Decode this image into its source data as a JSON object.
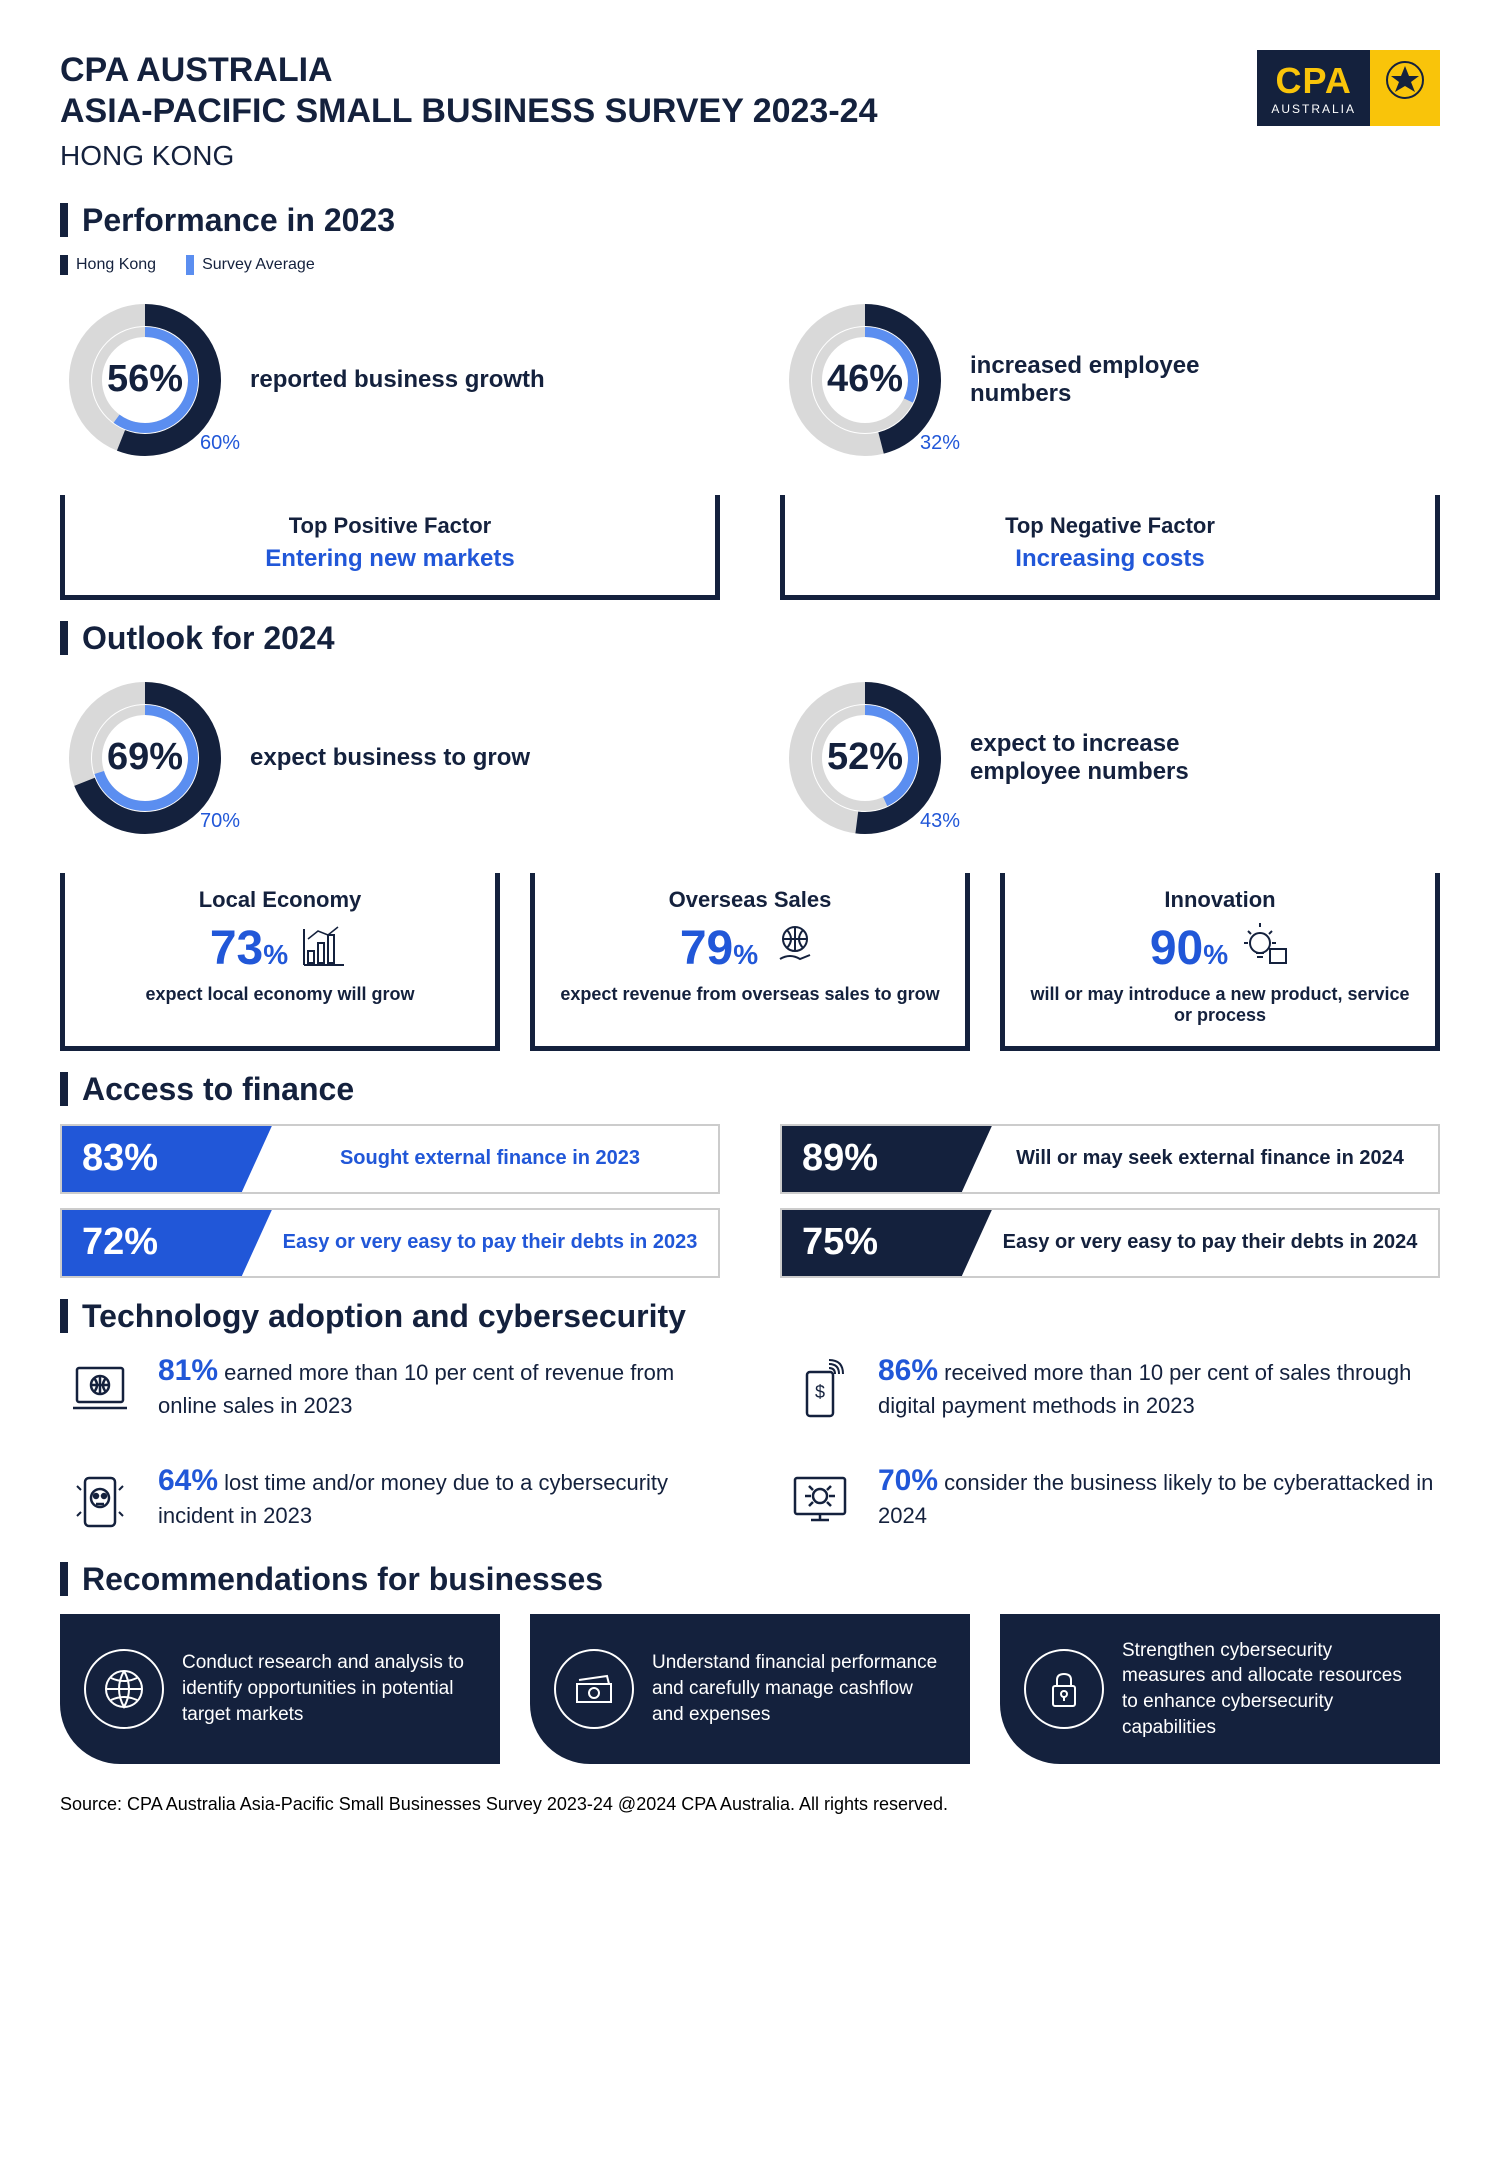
{
  "colors": {
    "navy": "#14213d",
    "blue": "#2157d8",
    "lightblue": "#5b8ef0",
    "yellow": "#f9c40a",
    "grey": "#d9d9d9",
    "white": "#ffffff"
  },
  "header": {
    "org": "CPA AUSTRALIA",
    "title": "ASIA-PACIFIC SMALL BUSINESS SURVEY 2023-24",
    "region": "HONG KONG",
    "logo_text": "CPA",
    "logo_sub": "AUSTRALIA"
  },
  "performance": {
    "title": "Performance in 2023",
    "legend": [
      {
        "label": "Hong Kong",
        "color": "#14213d"
      },
      {
        "label": "Survey Average",
        "color": "#5b8ef0"
      }
    ],
    "donuts": [
      {
        "value": 56,
        "avg": 60,
        "label": "reported business growth"
      },
      {
        "value": 46,
        "avg": 32,
        "label": "increased employee numbers"
      }
    ],
    "factors": [
      {
        "title": "Top Positive Factor",
        "value": "Entering new markets"
      },
      {
        "title": "Top Negative Factor",
        "value": "Increasing costs"
      }
    ]
  },
  "outlook": {
    "title": "Outlook for 2024",
    "donuts": [
      {
        "value": 69,
        "avg": 70,
        "label": "expect business to grow"
      },
      {
        "value": 52,
        "avg": 43,
        "label": "expect to increase employee numbers"
      }
    ],
    "cards": [
      {
        "title": "Local Economy",
        "value": "73",
        "desc": "expect local economy will grow",
        "icon": "chart"
      },
      {
        "title": "Overseas Sales",
        "value": "79",
        "desc": "expect revenue from overseas sales to grow",
        "icon": "globe-hand"
      },
      {
        "title": "Innovation",
        "value": "90",
        "desc": "will or may introduce a new product, service or process",
        "icon": "bulb"
      }
    ]
  },
  "finance": {
    "title": "Access to finance",
    "left": [
      {
        "pct": "83%",
        "text": "Sought external finance in 2023",
        "bg": "#2157d8",
        "txtcolor": "#2157d8"
      },
      {
        "pct": "72%",
        "text": "Easy or very easy to pay their debts in 2023",
        "bg": "#2157d8",
        "txtcolor": "#2157d8"
      }
    ],
    "right": [
      {
        "pct": "89%",
        "text": "Will or may seek external finance in 2024",
        "bg": "#14213d",
        "txtcolor": "#14213d"
      },
      {
        "pct": "75%",
        "text": "Easy or very easy to pay their debts in 2024",
        "bg": "#14213d",
        "txtcolor": "#14213d"
      }
    ]
  },
  "tech": {
    "title": "Technology adoption and cybersecurity",
    "items": [
      {
        "pct": "81%",
        "text": " earned more than 10 per cent of revenue from online sales in 2023",
        "icon": "laptop"
      },
      {
        "pct": "86%",
        "text": " received more than 10 per cent of sales through digital payment methods in 2023",
        "icon": "phone-pay"
      },
      {
        "pct": "64%",
        "text": " lost time and/or money due to a cybersecurity incident in 2023",
        "icon": "phone-skull"
      },
      {
        "pct": "70%",
        "text": " consider the business likely to be cyberattacked in 2024",
        "icon": "screen-bug"
      }
    ]
  },
  "recs": {
    "title": "Recommendations for businesses",
    "items": [
      {
        "text": "Conduct research and analysis to identify opportunities in potential target markets",
        "icon": "globe"
      },
      {
        "text": "Understand financial performance and carefully manage cashflow and expenses",
        "icon": "money"
      },
      {
        "text": "Strengthen cybersecurity measures and allocate resources to enhance cybersecurity capabilities",
        "icon": "lock"
      }
    ]
  },
  "footer": "Source: CPA Australia Asia-Pacific Small Businesses Survey 2023-24 @2024 CPA Australia. All rights reserved."
}
